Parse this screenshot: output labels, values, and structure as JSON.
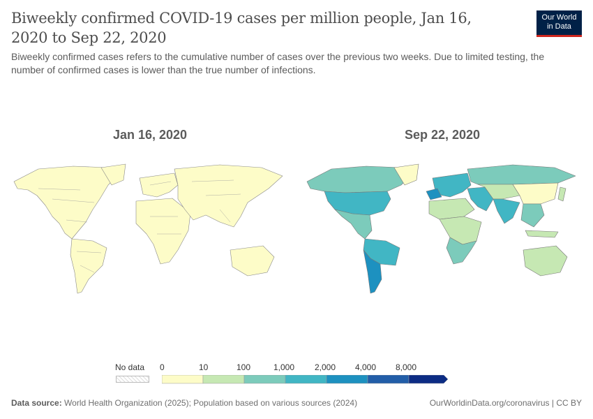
{
  "header": {
    "title": "Biweekly confirmed COVID-19 cases per million people, Jan 16, 2020 to Sep 22, 2020",
    "subtitle": "Biweekly confirmed cases refers to the cumulative number of cases over the previous two weeks. Due to limited testing, the number of confirmed cases is lower than the true number of infections.",
    "logo_line1": "Our World",
    "logo_line2": "in Data"
  },
  "maps": {
    "left_title": "Jan 16, 2020",
    "right_title": "Sep 22, 2020"
  },
  "legend": {
    "no_data_label": "No data",
    "bins": [
      {
        "label": "0",
        "color": "#fdfcc8"
      },
      {
        "label": "10",
        "color": "#c6e8b3"
      },
      {
        "label": "100",
        "color": "#7ccbbb"
      },
      {
        "label": "1,000",
        "color": "#41b6c4"
      },
      {
        "label": "2,000",
        "color": "#1d91c0"
      },
      {
        "label": "4,000",
        "color": "#225ea8"
      },
      {
        "label": "8,000",
        "color": "#0c2c84"
      }
    ]
  },
  "palette": {
    "zero": "#fdfcc8",
    "low": "#c6e8b3",
    "mid": "#7ccbbb",
    "high": "#41b6c4",
    "vhigh": "#1d91c0",
    "border": "#888888"
  },
  "footer": {
    "source_label": "Data source:",
    "source_text": "World Health Organization (2025); Population based on various sources (2024)",
    "url": "OurWorldinData.org/coronavirus | CC BY"
  }
}
